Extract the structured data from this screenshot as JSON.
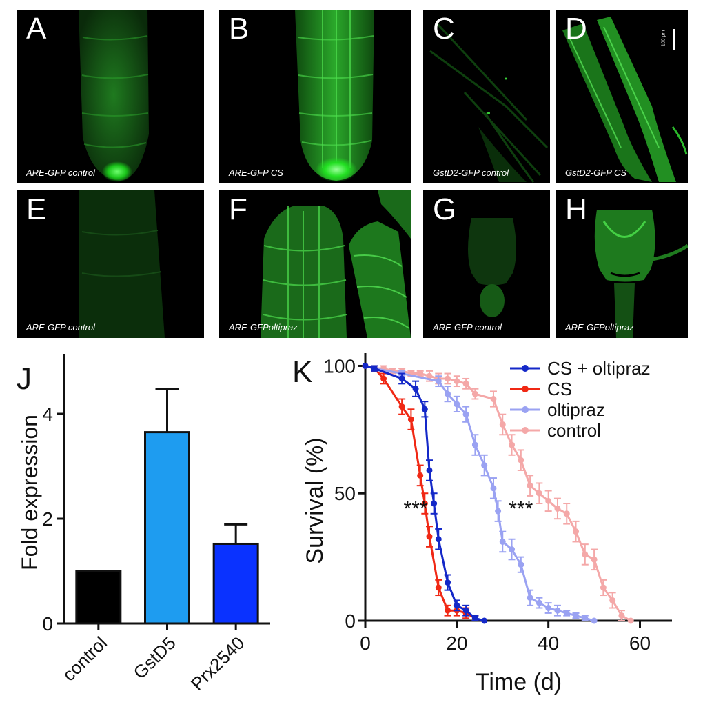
{
  "panels": [
    {
      "id": "A",
      "letter": "A",
      "caption": "ARE-GFP control"
    },
    {
      "id": "B",
      "letter": "B",
      "caption": "ARE-GFP CS"
    },
    {
      "id": "C",
      "letter": "C",
      "caption": "GstD2-GFP control"
    },
    {
      "id": "D",
      "letter": "D",
      "caption": "GstD2-GFP CS",
      "scalebar": "100 μm"
    },
    {
      "id": "E",
      "letter": "E",
      "caption": "ARE-GFP control"
    },
    {
      "id": "F",
      "letter": "F",
      "caption": "ARE-GFPoltipraz"
    },
    {
      "id": "G",
      "letter": "G",
      "caption": "ARE-GFP control"
    },
    {
      "id": "H",
      "letter": "H",
      "caption": "ARE-GFPoltipraz"
    }
  ],
  "colors": {
    "gfp_green": "#22c422",
    "panel_bg": "#000000"
  },
  "chart_data": [
    {
      "panel_letter": "J",
      "type": "bar",
      "categories": [
        "control",
        "GstD5",
        "Prx2540"
      ],
      "values": [
        1.0,
        3.65,
        1.52
      ],
      "errors": [
        0,
        0.82,
        0.37
      ],
      "colors": [
        "#000000",
        "#1e9cf0",
        "#0a32ff"
      ],
      "xlabel": "",
      "ylabel": "Fold expression",
      "ylim": [
        0,
        5
      ],
      "yticks": [
        "0",
        "2",
        "4"
      ],
      "ytick_values": [
        0,
        2,
        4
      ],
      "grid": false
    },
    {
      "panel_letter": "K",
      "type": "line",
      "xlabel": "Time (d)",
      "ylabel": "Survival (%)",
      "xlim": [
        0,
        67
      ],
      "ylim": [
        0,
        105
      ],
      "xticks": [
        "0",
        "20",
        "40",
        "60"
      ],
      "xtick_values": [
        0,
        20,
        40,
        60
      ],
      "yticks": [
        "0",
        "50",
        "100"
      ],
      "ytick_values": [
        0,
        50,
        100
      ],
      "legend_position": "top-right",
      "grid": false,
      "annotations": [
        {
          "text": "***",
          "x": 11,
          "y": 45
        },
        {
          "text": "***",
          "x": 34,
          "y": 45
        }
      ],
      "series": [
        {
          "name": "CS + oltipraz",
          "color": "#1428c8",
          "x": [
            0,
            2,
            8,
            11,
            13,
            14,
            15,
            16,
            18,
            20,
            22,
            24,
            26
          ],
          "y": [
            100,
            99,
            95,
            91,
            83,
            59,
            46,
            32,
            15,
            6,
            4,
            1,
            0
          ],
          "err": [
            0,
            1,
            2,
            3,
            3,
            4,
            4,
            4,
            3,
            2,
            2,
            1,
            0
          ]
        },
        {
          "name": "CS",
          "color": "#f02814",
          "x": [
            0,
            2,
            4,
            8,
            10,
            12,
            13,
            14,
            16,
            18,
            20,
            22,
            24
          ],
          "y": [
            100,
            99,
            95,
            84,
            79,
            57,
            46,
            33,
            13,
            4,
            4,
            3,
            1
          ],
          "err": [
            0,
            1,
            2,
            3,
            4,
            4,
            4,
            4,
            3,
            2,
            2,
            2,
            1
          ]
        },
        {
          "name": "oltipraz",
          "color": "#9aa2f2",
          "x": [
            0,
            2,
            8,
            16,
            18,
            20,
            22,
            24,
            26,
            28,
            29,
            30,
            32,
            34,
            36,
            38,
            40,
            42,
            44,
            46,
            48,
            50
          ],
          "y": [
            100,
            99,
            97,
            94,
            89,
            85,
            81,
            69,
            61,
            52,
            43,
            31,
            28,
            22,
            9,
            7,
            5,
            4,
            3,
            2,
            1,
            0
          ],
          "err": [
            0,
            1,
            1,
            2,
            3,
            3,
            3,
            4,
            4,
            4,
            4,
            4,
            4,
            3,
            3,
            2,
            2,
            2,
            1,
            1,
            1,
            0
          ]
        },
        {
          "name": "control",
          "color": "#f4a8a8",
          "x": [
            0,
            2,
            4,
            6,
            8,
            10,
            12,
            14,
            16,
            18,
            20,
            22,
            24,
            28,
            30,
            32,
            34,
            36,
            38,
            40,
            42,
            44,
            46,
            48,
            50,
            52,
            54,
            56,
            58
          ],
          "y": [
            100,
            99,
            99,
            98,
            98,
            97,
            97,
            96,
            95,
            95,
            94,
            93,
            89,
            87,
            77,
            69,
            63,
            53,
            50,
            47,
            44,
            42,
            35,
            26,
            24,
            13,
            8,
            2,
            0
          ],
          "err": [
            0,
            1,
            1,
            1,
            1,
            1,
            1,
            2,
            2,
            2,
            2,
            2,
            2,
            3,
            4,
            4,
            4,
            4,
            4,
            4,
            4,
            4,
            4,
            4,
            4,
            3,
            3,
            2,
            0
          ]
        }
      ]
    }
  ]
}
